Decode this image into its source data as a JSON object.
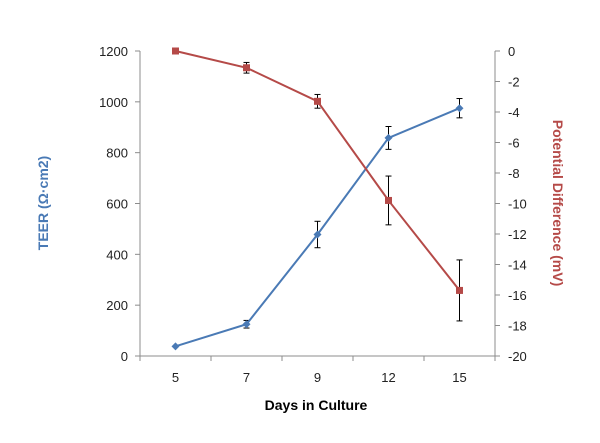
{
  "chart_data": {
    "type": "line",
    "categories": [
      "5",
      "7",
      "9",
      "12",
      "15"
    ],
    "xlabel": "Days in Culture",
    "y_left": {
      "label": "TEER (Ω·cm2)",
      "lim": [
        0,
        1200
      ],
      "ticks": [
        "0",
        "200",
        "400",
        "600",
        "800",
        "1000",
        "1200"
      ],
      "color": "#4a7ab5"
    },
    "y_right": {
      "label": "Potential Difference (mV)",
      "lim": [
        -20,
        0
      ],
      "ticks": [
        "-20",
        "-18",
        "-16",
        "-14",
        "-12",
        "-10",
        "-8",
        "-6",
        "-4",
        "-2",
        "0"
      ],
      "color": "#b54a48"
    },
    "series": [
      {
        "axis": "left",
        "marker": "diamond",
        "color": "#4a7ab5",
        "values": [
          38,
          125,
          478,
          858,
          975
        ],
        "errors": [
          0,
          15,
          52,
          45,
          38
        ]
      },
      {
        "axis": "right",
        "marker": "square",
        "color": "#b54a48",
        "values": [
          0,
          -1.1,
          -3.3,
          -9.8,
          -15.7
        ],
        "errors": [
          0,
          0.35,
          0.45,
          1.6,
          2.0
        ]
      }
    ],
    "grid": false,
    "legend": "none"
  }
}
